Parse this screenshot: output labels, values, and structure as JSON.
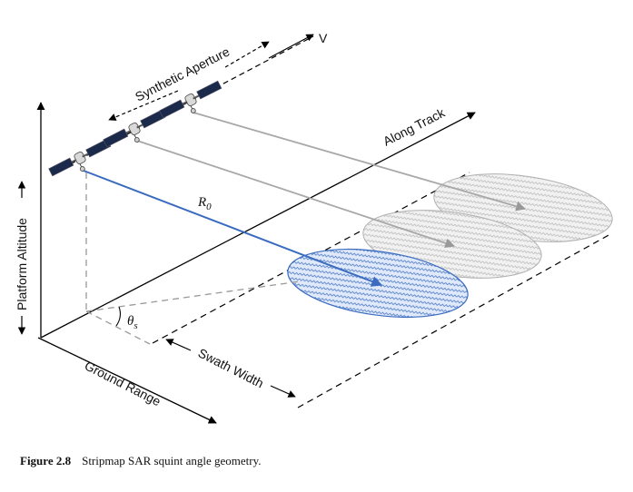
{
  "labels": {
    "velocity": "V",
    "synthetic_aperture": "Synthetic Aperture",
    "along_track": "Along Track",
    "platform_altitude": "Platform Altitude",
    "ground_range": "Ground Range",
    "swath_width": "Swath Width",
    "range_symbol": "R",
    "range_subscript": "0",
    "squint_symbol": "θ",
    "squint_subscript": "s"
  },
  "caption": {
    "figure_number": "Figure 2.8",
    "text": "Stripmap SAR squint angle geometry."
  },
  "colors": {
    "axis": "#000000",
    "active_beam": "#3a6bbf",
    "inactive_beam": "#a8a8a8",
    "satellite_panel": "#1b2a4a",
    "dashed_guides": "#999999"
  },
  "icons": [
    "satellite-icon",
    "arrow-icon"
  ]
}
